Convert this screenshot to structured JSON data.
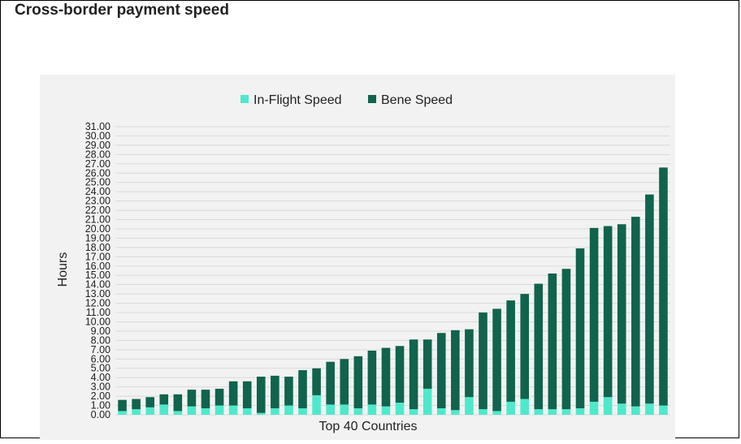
{
  "page": {
    "title": "Cross-border payment speed"
  },
  "colors": {
    "in_flight": "#4ee9cb",
    "bene": "#10634c",
    "grid": "#d9d9d9",
    "panel": "#f2f2f2",
    "text": "#222222"
  },
  "chart_data": {
    "type": "bar",
    "stacked": true,
    "title": "",
    "xlabel": "Top 40 Countries",
    "ylabel": "Hours",
    "ylim": [
      0,
      31
    ],
    "yticks": [
      "0.00",
      "1.00",
      "2.00",
      "3.00",
      "4.00",
      "5.00",
      "6.00",
      "7.00",
      "8.00",
      "9.00",
      "10.00",
      "11.00",
      "12.00",
      "13.00",
      "14.00",
      "15.00",
      "16.00",
      "17.00",
      "18.00",
      "19.00",
      "20.00",
      "21.00",
      "22.00",
      "23.00",
      "24.00",
      "25.00",
      "26.00",
      "27.00",
      "28.00",
      "29.00",
      "30.00",
      "31.00"
    ],
    "grid": true,
    "legend_position": "top-center",
    "series": [
      {
        "name": "In-Flight Speed",
        "values": [
          0.4,
          0.6,
          0.8,
          1.1,
          0.4,
          0.9,
          0.7,
          1.0,
          1.0,
          0.7,
          0.2,
          0.7,
          1.0,
          0.7,
          2.1,
          1.1,
          1.1,
          0.7,
          1.1,
          0.9,
          1.3,
          0.6,
          2.8,
          0.7,
          0.5,
          1.9,
          0.6,
          0.4,
          1.4,
          1.7,
          0.6,
          0.6,
          0.6,
          0.7,
          1.4,
          1.9,
          1.2,
          0.9,
          1.2,
          1.0
        ]
      },
      {
        "name": "Bene Speed",
        "values": [
          1.2,
          1.1,
          1.1,
          1.1,
          1.8,
          1.8,
          2.0,
          1.8,
          2.6,
          2.9,
          3.9,
          3.5,
          3.1,
          4.1,
          2.9,
          4.6,
          4.9,
          5.6,
          5.8,
          6.3,
          6.1,
          7.5,
          5.3,
          8.1,
          8.6,
          7.3,
          10.4,
          11.0,
          10.9,
          11.3,
          13.5,
          14.6,
          15.1,
          17.2,
          18.7,
          18.4,
          19.3,
          20.4,
          22.5,
          25.6
        ]
      }
    ]
  }
}
